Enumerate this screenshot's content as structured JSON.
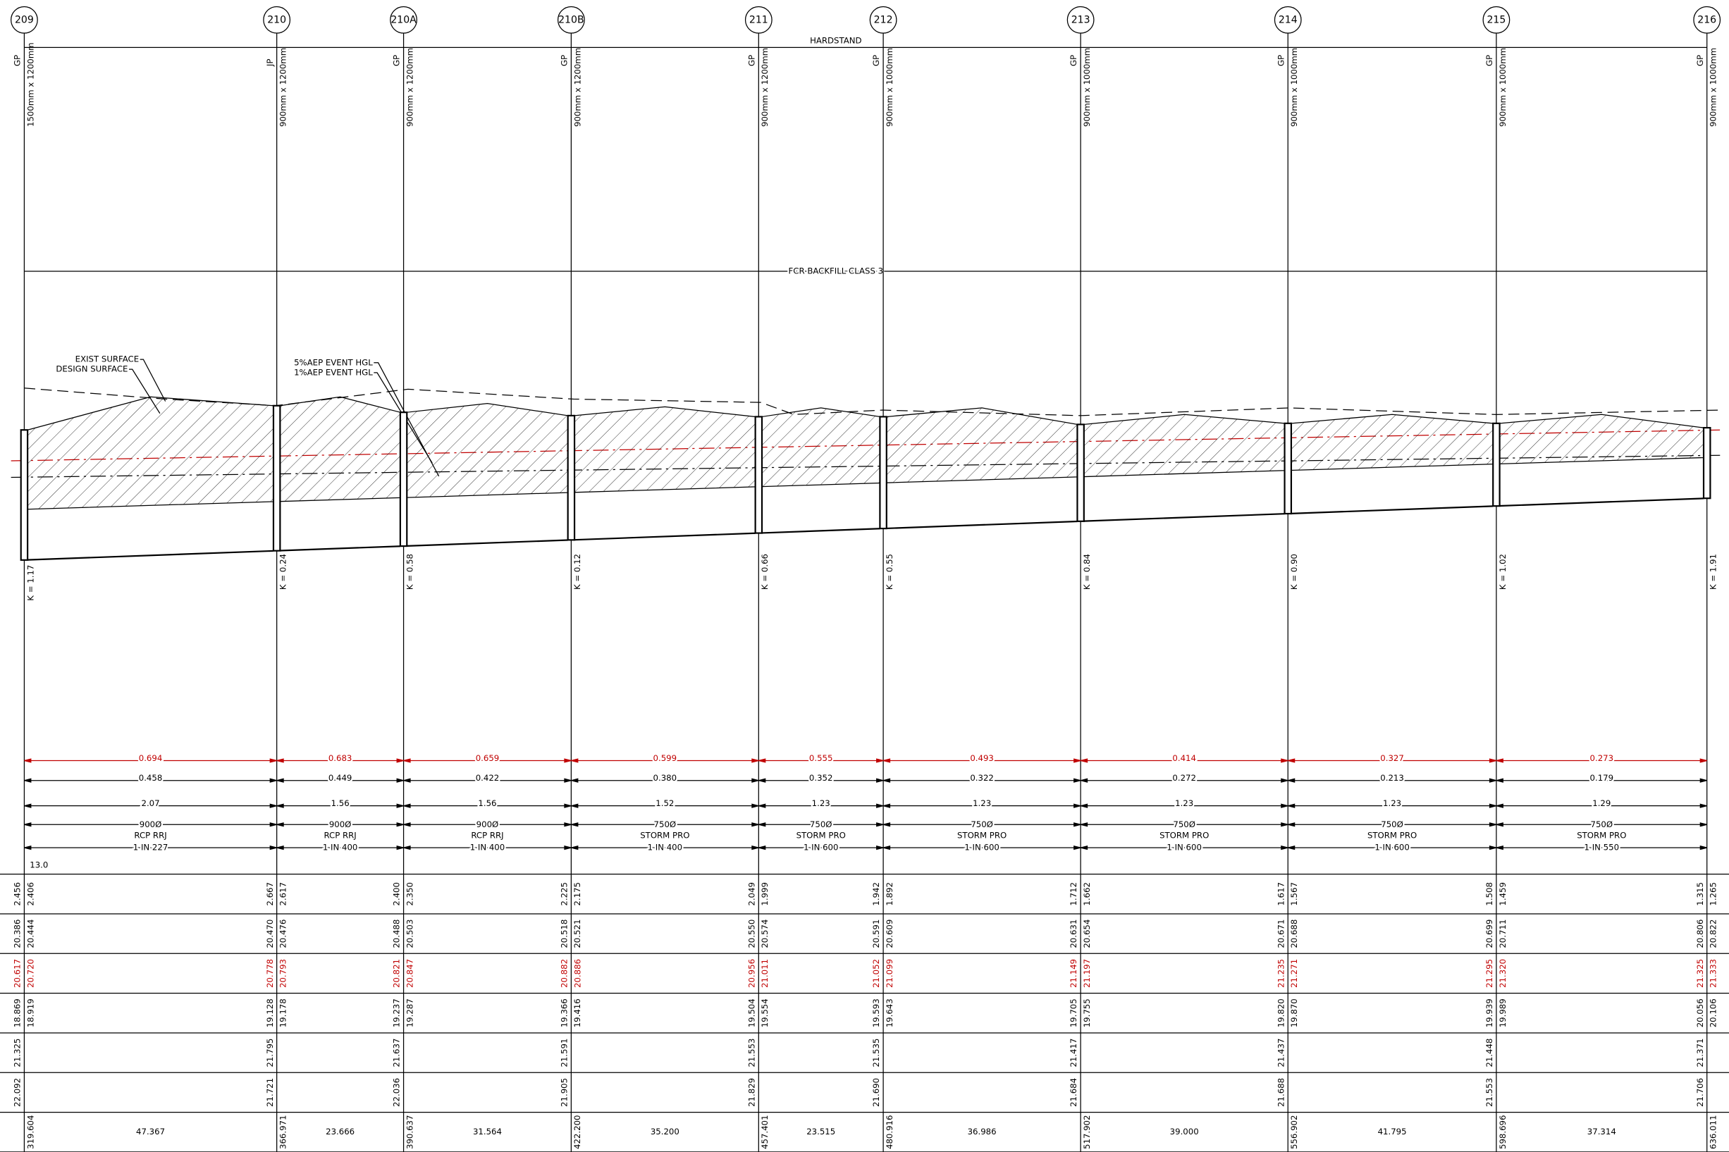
{
  "labels": {
    "hardstand": "HARDSTAND",
    "backfill": "FCR BACKFILL CLASS 3",
    "exist_surface": "EXIST SURFACE",
    "design_surface": "DESIGN SURFACE",
    "hgl5": "5%AEP EVENT HGL",
    "hgl1": "1%AEP EVENT HGL",
    "note": "13.0"
  },
  "pits": [
    {
      "id": "209",
      "type": "GP",
      "size": "1500mm x 1200mm",
      "k": "K = 1.17",
      "rows": [
        [
          "2.456",
          "2.406"
        ],
        [
          "20.386",
          "20.444"
        ],
        [
          "20.617",
          "20.720"
        ],
        [
          "18.869",
          "18.919"
        ],
        [
          "21.325"
        ],
        [
          "22.092"
        ],
        [
          "319.604"
        ]
      ]
    },
    {
      "id": "210",
      "type": "JP",
      "size": "900mm x 1200mm",
      "k": "K = 0.24",
      "rows": [
        [
          "2.667",
          "2.617"
        ],
        [
          "20.470",
          "20.476"
        ],
        [
          "20.778",
          "20.793"
        ],
        [
          "19.128",
          "19.178"
        ],
        [
          "21.795"
        ],
        [
          "21.721"
        ],
        [
          "366.971"
        ]
      ]
    },
    {
      "id": "210A",
      "type": "GP",
      "size": "900mm x 1200mm",
      "k": "K = 0.58",
      "rows": [
        [
          "2.400",
          "2.350"
        ],
        [
          "20.488",
          "20.503"
        ],
        [
          "20.821",
          "20.847"
        ],
        [
          "19.237",
          "19.287"
        ],
        [
          "21.637"
        ],
        [
          "22.036"
        ],
        [
          "390.637"
        ]
      ]
    },
    {
      "id": "210B",
      "type": "GP",
      "size": "900mm x 1200mm",
      "k": "K = 0.12",
      "rows": [
        [
          "2.225",
          "2.175"
        ],
        [
          "20.518",
          "20.521"
        ],
        [
          "20.882",
          "20.886"
        ],
        [
          "19.366",
          "19.416"
        ],
        [
          "21.591"
        ],
        [
          "21.905"
        ],
        [
          "422.200"
        ]
      ]
    },
    {
      "id": "211",
      "type": "GP",
      "size": "900mm x 1200mm",
      "k": "K = 0.66",
      "rows": [
        [
          "2.049",
          "1.999"
        ],
        [
          "20.550",
          "20.574"
        ],
        [
          "20.956",
          "21.011"
        ],
        [
          "19.504",
          "19.554"
        ],
        [
          "21.553"
        ],
        [
          "21.829"
        ],
        [
          "457.401"
        ]
      ]
    },
    {
      "id": "212",
      "type": "GP",
      "size": "900mm x 1000mm",
      "k": "K = 0.55",
      "rows": [
        [
          "1.942",
          "1.892"
        ],
        [
          "20.591",
          "20.609"
        ],
        [
          "21.052",
          "21.099"
        ],
        [
          "19.593",
          "19.643"
        ],
        [
          "21.535"
        ],
        [
          "21.690"
        ],
        [
          "480.916"
        ]
      ]
    },
    {
      "id": "213",
      "type": "GP",
      "size": "900mm x 1000mm",
      "k": "K = 0.84",
      "rows": [
        [
          "1.712",
          "1.662"
        ],
        [
          "20.631",
          "20.654"
        ],
        [
          "21.149",
          "21.197"
        ],
        [
          "19.705",
          "19.755"
        ],
        [
          "21.417"
        ],
        [
          "21.684"
        ],
        [
          "517.902"
        ]
      ]
    },
    {
      "id": "214",
      "type": "GP",
      "size": "900mm x 1000mm",
      "k": "K = 0.90",
      "rows": [
        [
          "1.617",
          "1.567"
        ],
        [
          "20.671",
          "20.688"
        ],
        [
          "21.235",
          "21.271"
        ],
        [
          "19.820",
          "19.870"
        ],
        [
          "21.437"
        ],
        [
          "21.688"
        ],
        [
          "556.902"
        ]
      ]
    },
    {
      "id": "215",
      "type": "GP",
      "size": "900mm x 1000mm",
      "k": "K = 1.02",
      "rows": [
        [
          "1.508",
          "1.459"
        ],
        [
          "20.699",
          "20.711"
        ],
        [
          "21.295",
          "21.320"
        ],
        [
          "19.939",
          "19.989"
        ],
        [
          "21.448"
        ],
        [
          "21.553"
        ],
        [
          "598.696"
        ]
      ]
    },
    {
      "id": "216",
      "type": "GP",
      "size": "900mm x 1000mm",
      "k": "K = 1.91",
      "rows": [
        [
          "1.315",
          "1.265"
        ],
        [
          "20.806",
          "20.822"
        ],
        [
          "21.325",
          "21.333"
        ],
        [
          "20.056",
          "20.106"
        ],
        [
          "21.371"
        ],
        [
          "21.706"
        ],
        [
          "636.011"
        ]
      ]
    }
  ],
  "segments": [
    {
      "hgl": "0.694",
      "fall": "0.458",
      "velocity": "2.07",
      "pipe": [
        "900Ø",
        "RCP RRJ",
        "1 IN 227"
      ],
      "length": "47.367"
    },
    {
      "hgl": "0.683",
      "fall": "0.449",
      "velocity": "1.56",
      "pipe": [
        "900Ø",
        "RCP RRJ",
        "1 IN 400"
      ],
      "length": "23.666"
    },
    {
      "hgl": "0.659",
      "fall": "0.422",
      "velocity": "1.56",
      "pipe": [
        "900Ø",
        "RCP RRJ",
        "1 IN 400"
      ],
      "length": "31.564"
    },
    {
      "hgl": "0.599",
      "fall": "0.380",
      "velocity": "1.52",
      "pipe": [
        "750Ø",
        "STORM PRO",
        "1 IN 400"
      ],
      "length": "35.200"
    },
    {
      "hgl": "0.555",
      "fall": "0.352",
      "velocity": "1.23",
      "pipe": [
        "750Ø",
        "STORM PRO",
        "1 IN 600"
      ],
      "length": "23.515"
    },
    {
      "hgl": "0.493",
      "fall": "0.322",
      "velocity": "1.23",
      "pipe": [
        "750Ø",
        "STORM PRO",
        "1 IN 600"
      ],
      "length": "36.986"
    },
    {
      "hgl": "0.414",
      "fall": "0.272",
      "velocity": "1.23",
      "pipe": [
        "750Ø",
        "STORM PRO",
        "1 IN 600"
      ],
      "length": "39.000"
    },
    {
      "hgl": "0.327",
      "fall": "0.213",
      "velocity": "1.23",
      "pipe": [
        "750Ø",
        "STORM PRO",
        "1 IN 600"
      ],
      "length": "41.795"
    },
    {
      "hgl": "0.273",
      "fall": "0.179",
      "velocity": "1.29",
      "pipe": [
        "750Ø",
        "STORM PRO",
        "1 IN 550"
      ],
      "length": "37.314"
    }
  ]
}
